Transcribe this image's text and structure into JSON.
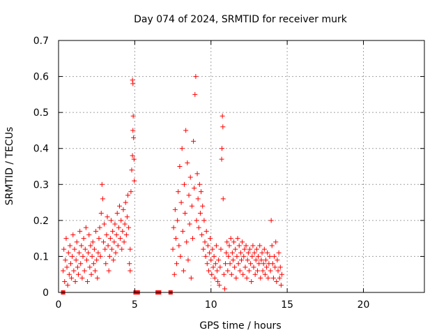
{
  "chart_data": {
    "type": "scatter",
    "title": "Day 074 of 2024, SRMTID for receiver murk",
    "xlabel": "GPS time / hours",
    "ylabel": "SRMTID / TECUs",
    "xlim": [
      0,
      24
    ],
    "ylim": [
      0,
      0.7
    ],
    "x_ticks": [
      0,
      5,
      10,
      15,
      20
    ],
    "x_tick_labels": [
      "0",
      "5",
      "10",
      "15",
      "20"
    ],
    "y_ticks": [
      0,
      0.1,
      0.2,
      0.3,
      0.4,
      0.5,
      0.6,
      0.7
    ],
    "y_tick_labels": [
      "0",
      "0.1",
      "0.2",
      "0.3",
      "0.4",
      "0.5",
      "0.6",
      "0.7"
    ],
    "grid": true,
    "marker": "plus",
    "color": "#ff0000",
    "series": [
      {
        "points": [
          [
            0.3,
            0.06
          ],
          [
            0.35,
            0.12
          ],
          [
            0.4,
            0.03
          ],
          [
            0.45,
            0.09
          ],
          [
            0.5,
            0.15
          ],
          [
            0.55,
            0.07
          ],
          [
            0.6,
            0.02
          ],
          [
            0.65,
            0.11
          ],
          [
            0.7,
            0.05
          ],
          [
            0.75,
            0.13
          ],
          [
            0.8,
            0.08
          ],
          [
            0.85,
            0.04
          ],
          [
            0.9,
            0.1
          ],
          [
            0.95,
            0.16
          ],
          [
            1.0,
            0.06
          ],
          [
            1.05,
            0.12
          ],
          [
            1.1,
            0.03
          ],
          [
            1.15,
            0.09
          ],
          [
            1.2,
            0.14
          ],
          [
            1.25,
            0.07
          ],
          [
            1.3,
            0.05
          ],
          [
            1.35,
            0.11
          ],
          [
            1.4,
            0.17
          ],
          [
            1.45,
            0.08
          ],
          [
            1.5,
            0.13
          ],
          [
            1.55,
            0.04
          ],
          [
            1.6,
            0.1
          ],
          [
            1.65,
            0.15
          ],
          [
            1.7,
            0.06
          ],
          [
            1.75,
            0.12
          ],
          [
            1.8,
            0.18
          ],
          [
            1.85,
            0.09
          ],
          [
            1.9,
            0.03
          ],
          [
            1.95,
            0.11
          ],
          [
            2.0,
            0.16
          ],
          [
            2.05,
            0.07
          ],
          [
            2.1,
            0.13
          ],
          [
            2.15,
            0.05
          ],
          [
            2.2,
            0.1
          ],
          [
            2.25,
            0.14
          ],
          [
            2.3,
            0.08
          ],
          [
            2.35,
            0.12
          ],
          [
            2.4,
            0.06
          ],
          [
            2.45,
            0.17
          ],
          [
            2.5,
            0.09
          ],
          [
            2.55,
            0.04
          ],
          [
            2.6,
            0.11
          ],
          [
            2.65,
            0.15
          ],
          [
            2.7,
            0.18
          ],
          [
            2.75,
            0.1
          ],
          [
            2.8,
            0.22
          ],
          [
            2.85,
            0.3
          ],
          [
            2.9,
            0.26
          ],
          [
            2.95,
            0.14
          ],
          [
            3.0,
            0.19
          ],
          [
            3.05,
            0.12
          ],
          [
            3.1,
            0.08
          ],
          [
            3.15,
            0.16
          ],
          [
            3.2,
            0.21
          ],
          [
            3.25,
            0.13
          ],
          [
            3.3,
            0.06
          ],
          [
            3.35,
            0.1
          ],
          [
            3.4,
            0.15
          ],
          [
            3.45,
            0.2
          ],
          [
            3.5,
            0.12
          ],
          [
            3.55,
            0.17
          ],
          [
            3.6,
            0.09
          ],
          [
            3.65,
            0.14
          ],
          [
            3.7,
            0.19
          ],
          [
            3.75,
            0.11
          ],
          [
            3.8,
            0.16
          ],
          [
            3.85,
            0.22
          ],
          [
            3.9,
            0.13
          ],
          [
            3.95,
            0.18
          ],
          [
            4.0,
            0.24
          ],
          [
            4.05,
            0.15
          ],
          [
            4.1,
            0.2
          ],
          [
            4.15,
            0.12
          ],
          [
            4.2,
            0.17
          ],
          [
            4.25,
            0.23
          ],
          [
            4.3,
            0.14
          ],
          [
            4.35,
            0.19
          ],
          [
            4.4,
            0.25
          ],
          [
            4.45,
            0.16
          ],
          [
            4.5,
            0.21
          ],
          [
            4.55,
            0.27
          ],
          [
            4.6,
            0.18
          ],
          [
            4.65,
            0.08
          ],
          [
            4.7,
            0.12
          ],
          [
            4.75,
            0.28
          ],
          [
            4.8,
            0.34
          ],
          [
            4.85,
            0.38
          ],
          [
            4.88,
            0.45
          ],
          [
            4.9,
            0.49
          ],
          [
            4.92,
            0.43
          ],
          [
            4.95,
            0.37
          ],
          [
            4.97,
            0.31
          ],
          [
            4.85,
            0.59
          ],
          [
            4.88,
            0.58
          ],
          [
            4.7,
            0.06
          ],
          [
            7.5,
            0.12
          ],
          [
            7.55,
            0.18
          ],
          [
            7.6,
            0.05
          ],
          [
            7.65,
            0.23
          ],
          [
            7.7,
            0.15
          ],
          [
            7.75,
            0.08
          ],
          [
            7.8,
            0.2
          ],
          [
            7.85,
            0.28
          ],
          [
            7.9,
            0.13
          ],
          [
            7.95,
            0.35
          ],
          [
            8.0,
            0.1
          ],
          [
            8.05,
            0.25
          ],
          [
            8.1,
            0.4
          ],
          [
            8.15,
            0.17
          ],
          [
            8.2,
            0.06
          ],
          [
            8.25,
            0.3
          ],
          [
            8.3,
            0.22
          ],
          [
            8.35,
            0.45
          ],
          [
            8.4,
            0.14
          ],
          [
            8.45,
            0.36
          ],
          [
            8.5,
            0.09
          ],
          [
            8.55,
            0.27
          ],
          [
            8.6,
            0.19
          ],
          [
            8.65,
            0.32
          ],
          [
            8.7,
            0.04
          ],
          [
            8.75,
            0.24
          ],
          [
            8.8,
            0.15
          ],
          [
            8.85,
            0.42
          ],
          [
            8.9,
            0.29
          ],
          [
            8.95,
            0.55
          ],
          [
            9.0,
            0.6
          ],
          [
            9.05,
            0.2
          ],
          [
            9.1,
            0.33
          ],
          [
            9.15,
            0.26
          ],
          [
            9.2,
            0.18
          ],
          [
            9.25,
            0.3
          ],
          [
            9.3,
            0.22
          ],
          [
            9.35,
            0.28
          ],
          [
            9.4,
            0.16
          ],
          [
            9.45,
            0.24
          ],
          [
            9.5,
            0.12
          ],
          [
            9.55,
            0.2
          ],
          [
            9.6,
            0.14
          ],
          [
            9.65,
            0.1
          ],
          [
            9.7,
            0.17
          ],
          [
            9.75,
            0.08
          ],
          [
            9.8,
            0.13
          ],
          [
            9.85,
            0.06
          ],
          [
            9.9,
            0.11
          ],
          [
            9.95,
            0.15
          ],
          [
            10.0,
            0.09
          ],
          [
            10.05,
            0.05
          ],
          [
            10.1,
            0.12
          ],
          [
            10.15,
            0.07
          ],
          [
            10.2,
            0.1
          ],
          [
            10.25,
            0.04
          ],
          [
            10.3,
            0.08
          ],
          [
            10.35,
            0.13
          ],
          [
            10.4,
            0.06
          ],
          [
            10.45,
            0.03
          ],
          [
            10.5,
            0.09
          ],
          [
            10.55,
            0.02
          ],
          [
            10.6,
            0.07
          ],
          [
            10.65,
            0.12
          ],
          [
            10.7,
            0.37
          ],
          [
            10.72,
            0.4
          ],
          [
            10.75,
            0.49
          ],
          [
            10.78,
            0.46
          ],
          [
            10.8,
            0.26
          ],
          [
            10.85,
            0.05
          ],
          [
            10.9,
            0.01
          ],
          [
            10.95,
            0.08
          ],
          [
            11.0,
            0.11
          ],
          [
            11.05,
            0.14
          ],
          [
            11.1,
            0.06
          ],
          [
            11.15,
            0.1
          ],
          [
            11.2,
            0.13
          ],
          [
            11.25,
            0.08
          ],
          [
            11.3,
            0.15
          ],
          [
            11.35,
            0.05
          ],
          [
            11.4,
            0.11
          ],
          [
            11.45,
            0.09
          ],
          [
            11.5,
            0.14
          ],
          [
            11.55,
            0.07
          ],
          [
            11.6,
            0.12
          ],
          [
            11.65,
            0.04
          ],
          [
            11.7,
            0.1
          ],
          [
            11.75,
            0.15
          ],
          [
            11.8,
            0.08
          ],
          [
            11.85,
            0.13
          ],
          [
            11.9,
            0.06
          ],
          [
            11.95,
            0.11
          ],
          [
            12.0,
            0.09
          ],
          [
            12.05,
            0.14
          ],
          [
            12.1,
            0.05
          ],
          [
            12.15,
            0.1
          ],
          [
            12.2,
            0.12
          ],
          [
            12.25,
            0.07
          ],
          [
            12.3,
            0.13
          ],
          [
            12.35,
            0.04
          ],
          [
            12.4,
            0.09
          ],
          [
            12.45,
            0.11
          ],
          [
            12.5,
            0.06
          ],
          [
            12.55,
            0.12
          ],
          [
            12.6,
            0.08
          ],
          [
            12.65,
            0.03
          ],
          [
            12.7,
            0.1
          ],
          [
            12.75,
            0.13
          ],
          [
            12.8,
            0.07
          ],
          [
            12.85,
            0.11
          ],
          [
            12.9,
            0.05
          ],
          [
            12.95,
            0.09
          ],
          [
            13.0,
            0.12
          ],
          [
            13.05,
            0.06
          ],
          [
            13.1,
            0.1
          ],
          [
            13.15,
            0.08
          ],
          [
            13.2,
            0.13
          ],
          [
            13.25,
            0.04
          ],
          [
            13.3,
            0.09
          ],
          [
            13.35,
            0.11
          ],
          [
            13.4,
            0.06
          ],
          [
            13.45,
            0.08
          ],
          [
            13.5,
            0.12
          ],
          [
            13.55,
            0.05
          ],
          [
            13.6,
            0.09
          ],
          [
            13.65,
            0.07
          ],
          [
            13.7,
            0.11
          ],
          [
            13.75,
            0.04
          ],
          [
            13.8,
            0.08
          ],
          [
            13.85,
            0.1
          ],
          [
            13.9,
            0.06
          ],
          [
            13.95,
            0.2
          ],
          [
            14.0,
            0.13
          ],
          [
            14.05,
            0.08
          ],
          [
            14.1,
            0.04
          ],
          [
            14.15,
            0.1
          ],
          [
            14.2,
            0.07
          ],
          [
            14.25,
            0.14
          ],
          [
            14.3,
            0.03
          ],
          [
            14.35,
            0.09
          ],
          [
            14.4,
            0.06
          ],
          [
            14.45,
            0.11
          ],
          [
            14.5,
            0.04
          ],
          [
            14.55,
            0.07
          ],
          [
            14.6,
            0.02
          ],
          [
            14.65,
            0.05
          ]
        ]
      }
    ],
    "zero_markers": [
      0.3,
      5.05,
      5.2,
      6.5,
      6.6,
      7.35
    ]
  }
}
